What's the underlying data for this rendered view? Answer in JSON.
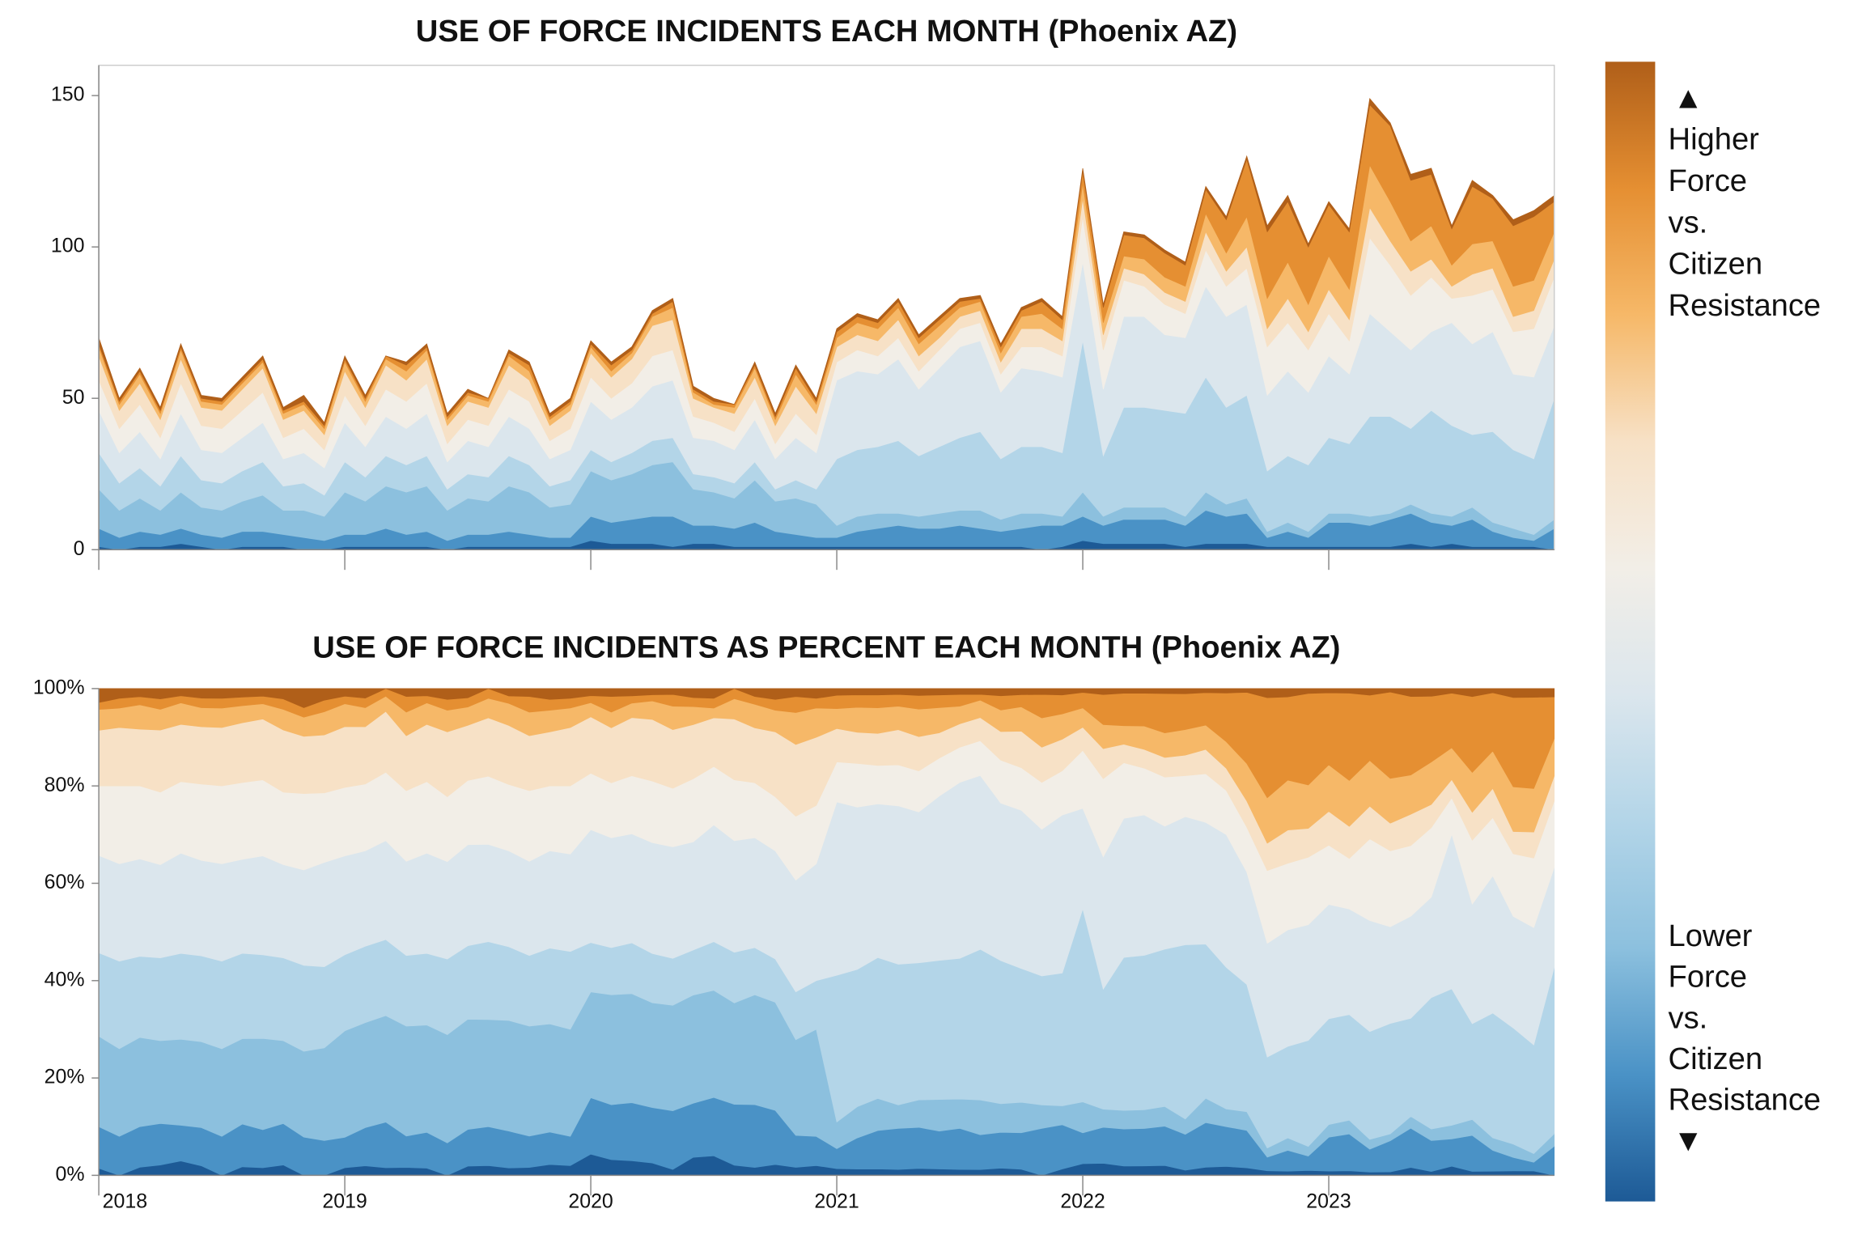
{
  "chart_data": [
    {
      "type": "stacked-area",
      "title": "USE OF FORCE INCIDENTS EACH MONTH (Phoenix AZ)",
      "x": [
        "2018-01",
        "2018-02",
        "2018-03",
        "2018-04",
        "2018-05",
        "2018-06",
        "2018-07",
        "2018-08",
        "2018-09",
        "2018-10",
        "2018-11",
        "2018-12",
        "2019-01",
        "2019-02",
        "2019-03",
        "2019-04",
        "2019-05",
        "2019-06",
        "2019-07",
        "2019-08",
        "2019-09",
        "2019-10",
        "2019-11",
        "2019-12",
        "2020-01",
        "2020-02",
        "2020-03",
        "2020-04",
        "2020-05",
        "2020-06",
        "2020-07",
        "2020-08",
        "2020-09",
        "2020-10",
        "2020-11",
        "2020-12",
        "2021-01",
        "2021-02",
        "2021-03",
        "2021-04",
        "2021-05",
        "2021-06",
        "2021-07",
        "2021-08",
        "2021-09",
        "2021-10",
        "2021-11",
        "2021-12",
        "2022-01",
        "2022-02",
        "2022-03",
        "2022-04",
        "2022-05",
        "2022-06",
        "2022-07",
        "2022-08",
        "2022-09",
        "2022-10",
        "2022-11",
        "2022-12",
        "2023-01",
        "2023-02",
        "2023-03",
        "2023-04",
        "2023-05",
        "2023-06",
        "2023-07",
        "2023-08",
        "2023-09",
        "2023-10",
        "2023-11",
        "2023-12"
      ],
      "xlim": [
        "2018-01",
        "2023-12"
      ],
      "ylim": [
        0,
        160
      ],
      "yticks": [
        0,
        50,
        100,
        150
      ],
      "series": [
        {
          "color": "#1d5a96",
          "values": [
            1,
            0,
            1,
            1,
            2,
            1,
            0,
            1,
            1,
            1,
            0,
            0,
            1,
            1,
            1,
            1,
            1,
            0,
            1,
            1,
            1,
            1,
            1,
            1,
            3,
            2,
            2,
            2,
            1,
            2,
            2,
            1,
            1,
            1,
            1,
            1,
            1,
            1,
            1,
            1,
            1,
            1,
            1,
            1,
            1,
            1,
            0,
            1,
            3,
            2,
            2,
            2,
            2,
            1,
            2,
            2,
            2,
            1,
            1,
            1,
            1,
            1,
            1,
            1,
            2,
            1,
            2,
            1,
            1,
            1,
            1,
            0
          ]
        },
        {
          "color": "#4a92c6",
          "values": [
            6,
            4,
            5,
            4,
            5,
            4,
            4,
            5,
            5,
            4,
            4,
            3,
            4,
            4,
            6,
            4,
            5,
            3,
            4,
            4,
            5,
            4,
            3,
            3,
            8,
            7,
            8,
            9,
            10,
            6,
            6,
            6,
            8,
            5,
            4,
            3,
            3,
            5,
            6,
            7,
            6,
            6,
            7,
            6,
            5,
            6,
            8,
            7,
            8,
            6,
            8,
            8,
            8,
            7,
            11,
            9,
            10,
            3,
            5,
            3,
            8,
            8,
            7,
            9,
            10,
            8,
            6,
            9,
            5,
            3,
            2,
            7
          ]
        },
        {
          "color": "#8cc0de",
          "values": [
            13,
            9,
            11,
            8,
            12,
            9,
            9,
            10,
            12,
            8,
            9,
            8,
            14,
            11,
            14,
            14,
            15,
            10,
            12,
            11,
            15,
            14,
            10,
            11,
            15,
            14,
            15,
            17,
            18,
            12,
            11,
            10,
            14,
            10,
            12,
            11,
            4,
            5,
            5,
            4,
            4,
            5,
            5,
            6,
            4,
            5,
            4,
            3,
            8,
            3,
            4,
            4,
            4,
            3,
            6,
            4,
            5,
            2,
            3,
            2,
            3,
            3,
            3,
            2,
            3,
            3,
            3,
            4,
            3,
            3,
            2,
            3
          ]
        },
        {
          "color": "#b3d5e8",
          "values": [
            12,
            9,
            10,
            8,
            12,
            9,
            9,
            10,
            11,
            8,
            9,
            7,
            10,
            8,
            10,
            9,
            10,
            7,
            8,
            8,
            10,
            9,
            7,
            8,
            7,
            6,
            7,
            8,
            8,
            5,
            5,
            5,
            6,
            4,
            6,
            5,
            22,
            22,
            22,
            24,
            20,
            22,
            24,
            26,
            20,
            22,
            22,
            21,
            50,
            20,
            33,
            33,
            32,
            34,
            38,
            32,
            34,
            20,
            22,
            22,
            25,
            23,
            33,
            32,
            25,
            34,
            30,
            24,
            30,
            26,
            25,
            40
          ]
        },
        {
          "color": "#dbe6ed",
          "values": [
            14,
            10,
            12,
            9,
            14,
            10,
            10,
            11,
            13,
            9,
            10,
            9,
            13,
            10,
            13,
            12,
            14,
            9,
            11,
            10,
            13,
            12,
            9,
            10,
            16,
            14,
            15,
            18,
            19,
            12,
            12,
            11,
            14,
            10,
            14,
            12,
            26,
            26,
            24,
            27,
            22,
            26,
            30,
            30,
            22,
            26,
            25,
            25,
            26,
            22,
            30,
            30,
            25,
            25,
            30,
            30,
            30,
            25,
            28,
            24,
            27,
            23,
            34,
            28,
            26,
            26,
            34,
            30,
            33,
            25,
            27,
            24
          ]
        },
        {
          "color": "#f2eee7",
          "values": [
            10,
            8,
            9,
            7,
            10,
            8,
            8,
            9,
            10,
            7,
            8,
            6,
            9,
            7,
            9,
            9,
            10,
            6,
            7,
            7,
            9,
            9,
            6,
            7,
            8,
            7,
            8,
            10,
            10,
            7,
            6,
            6,
            7,
            5,
            8,
            6,
            6,
            7,
            6,
            7,
            6,
            6,
            6,
            6,
            6,
            7,
            8,
            7,
            15,
            13,
            12,
            10,
            10,
            8,
            12,
            10,
            12,
            16,
            16,
            14,
            14,
            11,
            25,
            22,
            18,
            18,
            8,
            16,
            14,
            14,
            16,
            16
          ]
        },
        {
          "color": "#f7e1c6",
          "values": [
            8,
            6,
            7,
            6,
            8,
            6,
            6,
            7,
            8,
            6,
            6,
            5,
            8,
            6,
            8,
            7,
            8,
            6,
            6,
            6,
            8,
            7,
            5,
            6,
            8,
            7,
            8,
            10,
            10,
            6,
            5,
            6,
            7,
            6,
            9,
            7,
            5,
            5,
            5,
            6,
            5,
            4,
            4,
            4,
            4,
            6,
            6,
            5,
            6,
            5,
            4,
            4,
            4,
            4,
            6,
            5,
            7,
            6,
            8,
            6,
            8,
            7,
            10,
            8,
            8,
            6,
            4,
            7,
            7,
            5,
            6,
            6
          ]
        },
        {
          "color": "#f6b868",
          "values": [
            3,
            2,
            3,
            2,
            3,
            2,
            2,
            2,
            2,
            2,
            2,
            2,
            3,
            2,
            2,
            3,
            3,
            2,
            2,
            2,
            3,
            3,
            2,
            2,
            2,
            2,
            2,
            3,
            4,
            2,
            1,
            2,
            3,
            2,
            4,
            3,
            3,
            4,
            4,
            4,
            4,
            4,
            3,
            3,
            3,
            4,
            5,
            4,
            5,
            4,
            4,
            5,
            5,
            5,
            6,
            6,
            10,
            10,
            12,
            9,
            11,
            10,
            14,
            13,
            10,
            11,
            7,
            10,
            9,
            10,
            10,
            9
          ]
        },
        {
          "color": "#e58f32",
          "values": [
            1,
            1,
            1,
            1,
            1,
            1,
            1,
            1,
            1,
            1,
            1,
            1,
            1,
            1,
            1,
            2,
            1,
            1,
            1,
            1,
            1,
            2,
            1,
            1,
            1,
            2,
            1,
            1,
            2,
            1,
            1,
            1,
            1,
            1,
            2,
            1,
            2,
            2,
            2,
            2,
            2,
            2,
            2,
            1,
            2,
            2,
            4,
            3,
            4,
            5,
            7,
            7,
            8,
            7,
            8,
            11,
            19,
            22,
            20,
            19,
            17,
            19,
            20,
            25,
            20,
            17,
            12,
            19,
            14,
            20,
            21,
            10
          ]
        },
        {
          "color": "#b05f19",
          "values": [
            2,
            1,
            1,
            1,
            1,
            1,
            1,
            1,
            1,
            1,
            2,
            1,
            1,
            1,
            0,
            1,
            1,
            1,
            1,
            0,
            1,
            1,
            1,
            1,
            1,
            1,
            1,
            1,
            1,
            1,
            1,
            0,
            1,
            1,
            1,
            1,
            1,
            1,
            1,
            1,
            1,
            1,
            1,
            1,
            1,
            1,
            1,
            1,
            1,
            1,
            1,
            1,
            1,
            1,
            1,
            1,
            1,
            2,
            2,
            1,
            1,
            1,
            2,
            1,
            2,
            2,
            1,
            2,
            1,
            2,
            2,
            2
          ]
        }
      ],
      "legend": {
        "top": [
          "▲",
          "Higher",
          "Force",
          "vs.",
          "Citizen",
          "Resistance"
        ],
        "bottom": [
          "Lower",
          "Force",
          "vs.",
          "Citizen",
          "Resistance",
          "▼"
        ]
      }
    },
    {
      "type": "stacked-area-percent",
      "title": "USE OF FORCE INCIDENTS AS PERCENT EACH MONTH (Phoenix AZ)",
      "ylim": [
        0,
        100
      ],
      "yticks": [
        {
          "value": 0,
          "label": "0%"
        },
        {
          "value": 20,
          "label": "20%"
        },
        {
          "value": 40,
          "label": "40%"
        },
        {
          "value": 60,
          "label": "60%"
        },
        {
          "value": 80,
          "label": "80%"
        },
        {
          "value": 100,
          "label": "100%"
        }
      ],
      "xticks": [
        {
          "value": "2018-01",
          "label": "2018"
        },
        {
          "value": "2019-01",
          "label": "2019"
        },
        {
          "value": "2020-01",
          "label": "2020"
        },
        {
          "value": "2021-01",
          "label": "2021"
        },
        {
          "value": "2022-01",
          "label": "2022"
        },
        {
          "value": "2023-01",
          "label": "2023"
        }
      ]
    }
  ]
}
